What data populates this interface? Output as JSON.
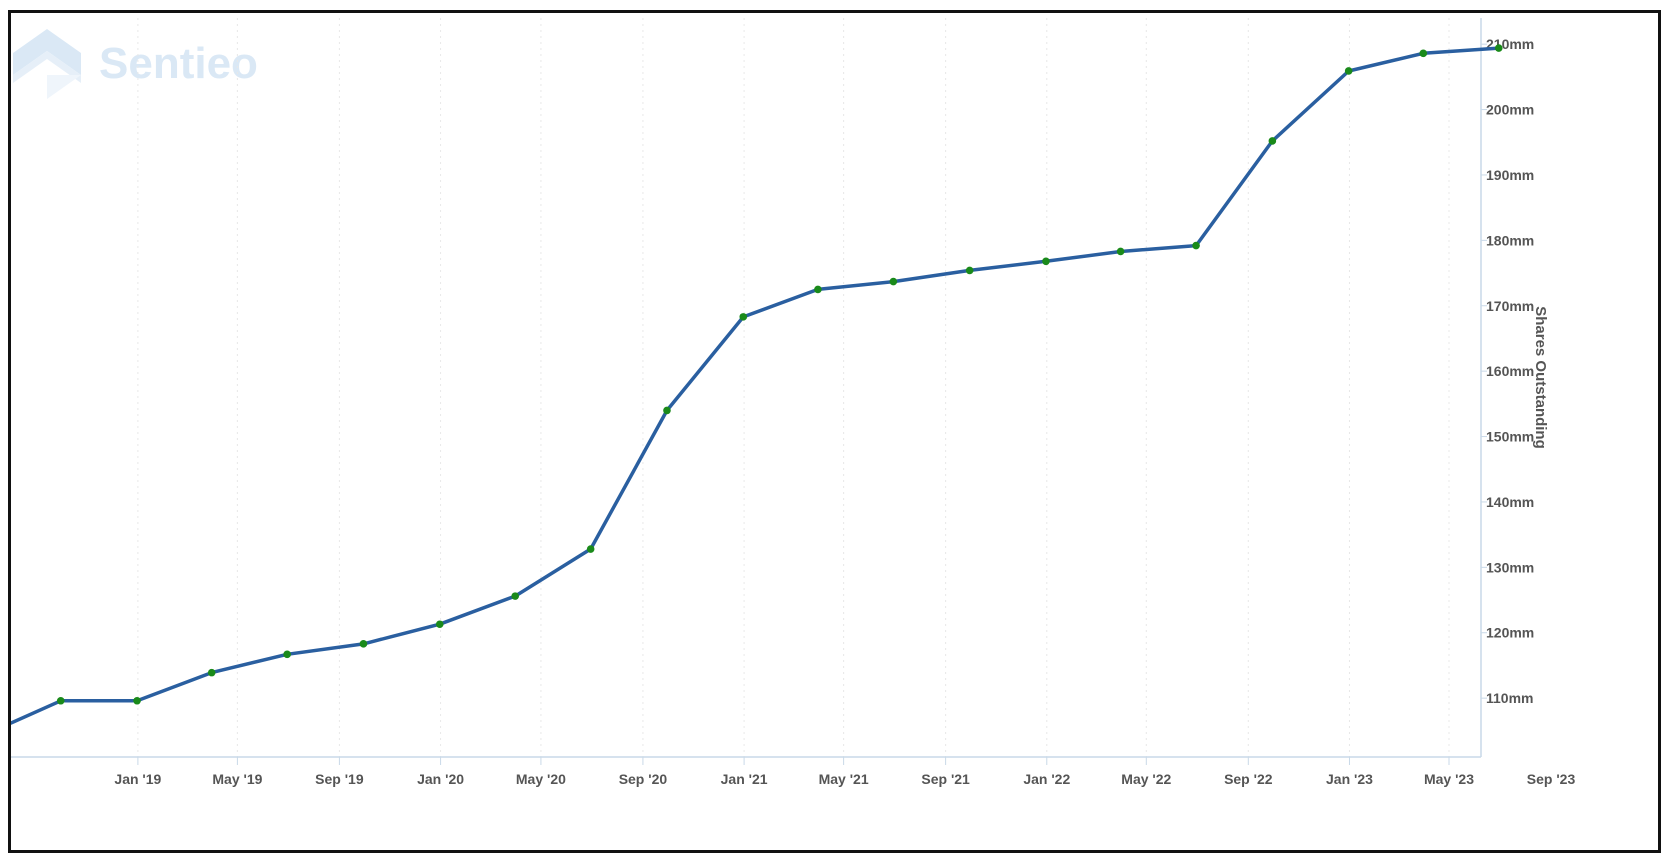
{
  "watermark": {
    "text": "Sentieo"
  },
  "colors": {
    "line": "#2a5fa0",
    "marker": "#1a8a1a",
    "axis": "#c9d9e8",
    "grid": "#e8e8e8",
    "tick_text": "#555555",
    "watermark": "#d6e6f5"
  },
  "chart_data": {
    "type": "line",
    "title": "",
    "xlabel": "",
    "ylabel": "Shares Outstanding",
    "y_unit_suffix": "mm",
    "ylim": [
      101,
      214
    ],
    "xlim": [
      "2018-08-01",
      "2023-09-01"
    ],
    "grid": "vertical dotted",
    "y_axis_position": "right",
    "y_ticks": [
      110,
      120,
      130,
      140,
      150,
      160,
      170,
      180,
      190,
      200,
      210
    ],
    "y_tick_labels": [
      "110mm",
      "120mm",
      "130mm",
      "140mm",
      "150mm",
      "160mm",
      "170mm",
      "180mm",
      "190mm",
      "200mm",
      "210mm"
    ],
    "x_ticks": [
      "2019-01-01",
      "2019-05-01",
      "2019-09-01",
      "2020-01-01",
      "2020-05-01",
      "2020-09-01",
      "2021-01-01",
      "2021-05-01",
      "2021-09-01",
      "2022-01-01",
      "2022-05-01",
      "2022-09-01",
      "2023-01-01",
      "2023-05-01",
      "2023-09-01"
    ],
    "x_tick_labels": [
      "Jan '19",
      "May '19",
      "Sep '19",
      "Jan '20",
      "May '20",
      "Sep '20",
      "Jan '21",
      "May '21",
      "Sep '21",
      "Jan '22",
      "May '22",
      "Sep '22",
      "Jan '23",
      "May '23",
      "Sep '23"
    ],
    "series": [
      {
        "x": [
          "2018-07-20",
          "2018-09-30",
          "2018-12-31",
          "2019-03-31",
          "2019-06-30",
          "2019-09-30",
          "2019-12-31",
          "2020-03-31",
          "2020-06-30",
          "2020-09-30",
          "2020-12-31",
          "2021-03-31",
          "2021-06-30",
          "2021-09-30",
          "2021-12-31",
          "2022-03-31",
          "2022-06-30",
          "2022-09-30",
          "2022-12-31",
          "2023-03-31",
          "2023-06-30"
        ],
        "values": [
          106.2,
          109.6,
          109.6,
          113.9,
          116.7,
          118.3,
          121.3,
          125.6,
          132.8,
          154.0,
          168.3,
          172.5,
          173.7,
          175.4,
          176.8,
          178.3,
          179.2,
          195.2,
          205.9,
          208.6,
          209.4
        ]
      }
    ]
  }
}
